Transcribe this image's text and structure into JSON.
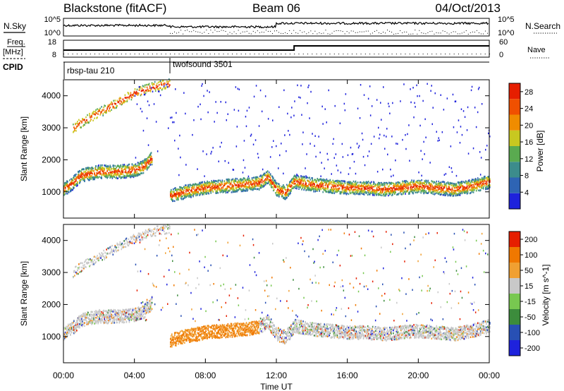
{
  "header": {
    "site": "Blackstone (fitACF)",
    "beam": "Beam 06",
    "date": "04/Oct/2013"
  },
  "panels": {
    "nsky_label": "N.Sky",
    "nsearch_label": "N.Search",
    "nsky_ticks": [
      "10^5",
      "10^0"
    ],
    "nsearch_ticks": [
      "10^5",
      "10^0"
    ],
    "freq_label_top": "Freq.",
    "freq_label_bottom": "[MHz]",
    "freq_ticks": [
      "8",
      "18"
    ],
    "nave_label": "Nave",
    "nave_ticks": [
      "0",
      "60"
    ],
    "cpid_label": "CPID",
    "cpid_modes": [
      {
        "name": "rbsp-tau 210",
        "start": 0
      },
      {
        "name": "twofsound 3501",
        "start": 6
      }
    ]
  },
  "time_axis": {
    "label": "Time UT",
    "ticks": [
      "00:00",
      "04:00",
      "08:00",
      "12:00",
      "16:00",
      "20:00",
      "00:00"
    ],
    "range_hours": [
      0,
      24
    ]
  },
  "chart_data": [
    {
      "type": "heatmap",
      "title": "Power",
      "ylabel": "Slant Range [km]",
      "yticks": [
        1000,
        2000,
        3000,
        4000
      ],
      "ylim": [
        180,
        4500
      ],
      "colorbar": {
        "label": "Power [dB]",
        "ticks": [
          4,
          8,
          12,
          16,
          20,
          24,
          28
        ],
        "range": [
          0,
          30
        ],
        "colors": [
          "#1e22dc",
          "#2e64b4",
          "#3c8c8c",
          "#5aaa50",
          "#c8c820",
          "#f08c00",
          "#f05000",
          "#e61e00"
        ]
      },
      "bands": [
        {
          "name": "near-range echo band",
          "hours": [
            0,
            0.5,
            1,
            2,
            3,
            4,
            4.5,
            5
          ],
          "range_km": [
            1100,
            1300,
            1550,
            1650,
            1650,
            1700,
            1800,
            2100
          ]
        },
        {
          "name": "main echo band",
          "hours": [
            6,
            7,
            8,
            9,
            10,
            11,
            11.5,
            12,
            12.5,
            13,
            14,
            15,
            16,
            17,
            18,
            19,
            20,
            21,
            22,
            23,
            24
          ],
          "range_km": [
            900,
            1050,
            1150,
            1200,
            1250,
            1300,
            1500,
            1100,
            1000,
            1350,
            1250,
            1200,
            1150,
            1150,
            1100,
            1150,
            1200,
            1150,
            1100,
            1200,
            1350
          ]
        },
        {
          "name": "far-range echo band",
          "hours": [
            0.5,
            1,
            2,
            3,
            4,
            5,
            6
          ],
          "range_km": [
            3000,
            3200,
            3500,
            3800,
            4100,
            4300,
            4400
          ]
        }
      ]
    },
    {
      "type": "heatmap",
      "title": "Velocity",
      "ylabel": "Slant Range [km]",
      "yticks": [
        1000,
        2000,
        3000,
        4000
      ],
      "ylim": [
        180,
        4500
      ],
      "colorbar": {
        "label": "Velocity [m s^-1]",
        "ticks": [
          200,
          100,
          50,
          15,
          -15,
          -50,
          -100,
          -200
        ],
        "range": [
          -250,
          250
        ],
        "colors": [
          "#1e22dc",
          "#2850b4",
          "#3c8c3c",
          "#78c850",
          "#c8c8c8",
          "#f0a032",
          "#f07800",
          "#e61e00"
        ]
      }
    }
  ]
}
